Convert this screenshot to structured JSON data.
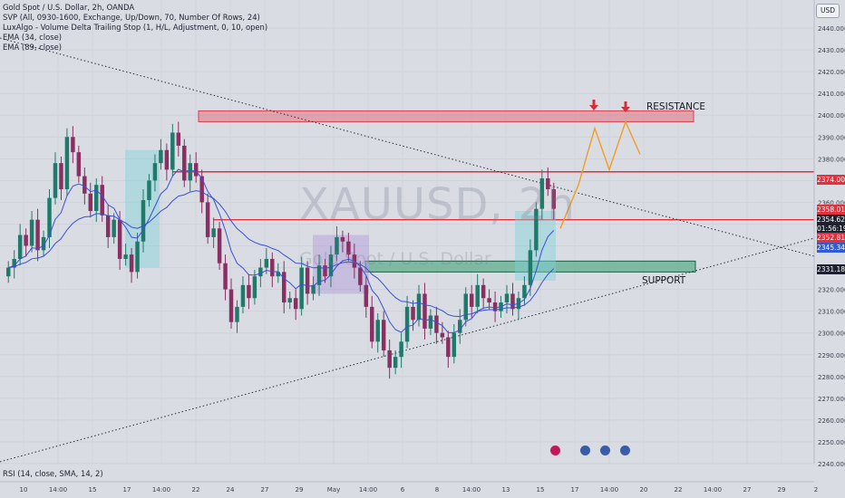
{
  "legend": {
    "line1": "Gold Spot / U.S. Dollar, 2h, OANDA",
    "line2": "SVP (All, 0930-1600, Exchange, Up/Down, 70, Number Of Rows, 24)",
    "line3": "LuxAlgo - Volume Delta Trailing Stop (1, H/L, Adjustment, 0, 10, open)",
    "line4": "EMA (34, close)",
    "line5": "EMA (89, close)"
  },
  "currency_button": "USD",
  "rsi_label": "RSI (14, close, SMA, 14, 2)",
  "watermark": {
    "symbol": "XAUUSD, 2h",
    "description": "Gold Spot / U.S. Dollar"
  },
  "annotations": {
    "resistance": "RESISTANCE",
    "support": "SUPPORT"
  },
  "price_labels": {
    "resistance_line": "2374.000",
    "level_red": "2358.012",
    "last_price": "2354.625",
    "countdown": "01:56:19",
    "level_red2": "2352.816",
    "ema_blue": "2345.348",
    "support_line": "2331.184"
  },
  "colors": {
    "background": "#d9dce3",
    "up_candle": "#1f7a6b",
    "down_candle": "#8a2f62",
    "ema": "#3b4fd6",
    "resistance_zone": "#e3737f",
    "support_zone": "#5fae8e",
    "projection": "#f39c1f",
    "red_line": "#e4303d",
    "arrow": "#d32f3b"
  },
  "chart_data": {
    "type": "candlestick",
    "symbol": "XAUUSD",
    "timeframe": "2h",
    "ylim": [
      2240,
      2450
    ],
    "y_ticks": [
      "2440.000",
      "2430.000",
      "2420.000",
      "2410.000",
      "2400.000",
      "2390.000",
      "2380.000",
      "2370.000",
      "2360.000",
      "2350.000",
      "2340.000",
      "2330.000",
      "2320.000",
      "2310.000",
      "2300.000",
      "2290.000",
      "2280.000",
      "2270.000",
      "2260.000",
      "2250.000",
      "2240.000"
    ],
    "x_ticks": [
      "10",
      "14:00",
      "15",
      "17",
      "14:00",
      "22",
      "24",
      "27",
      "29",
      "May",
      "14:00",
      "6",
      "8",
      "14:00",
      "13",
      "15",
      "17",
      "14:00",
      "20",
      "22",
      "14:00",
      "27",
      "29",
      "2"
    ],
    "resistance_zone": [
      2397,
      2402
    ],
    "support_zone": [
      2328,
      2333
    ],
    "horizontal_levels": [
      2374,
      2352
    ],
    "projection_path": [
      2348,
      2368,
      2394,
      2375,
      2397,
      2382
    ],
    "close_series": [
      2330,
      2334,
      2345,
      2340,
      2352,
      2338,
      2344,
      2362,
      2378,
      2366,
      2390,
      2383,
      2372,
      2364,
      2356,
      2368,
      2354,
      2344,
      2352,
      2334,
      2336,
      2328,
      2342,
      2361,
      2370,
      2378,
      2384,
      2375,
      2392,
      2386,
      2370,
      2378,
      2372,
      2360,
      2344,
      2348,
      2332,
      2320,
      2305,
      2312,
      2322,
      2316,
      2326,
      2330,
      2334,
      2326,
      2328,
      2314,
      2316,
      2311,
      2330,
      2318,
      2322,
      2331,
      2326,
      2336,
      2344,
      2342,
      2336,
      2330,
      2322,
      2312,
      2296,
      2306,
      2292,
      2284,
      2289,
      2296,
      2312,
      2306,
      2318,
      2302,
      2308,
      2300,
      2298,
      2289,
      2300,
      2306,
      2318,
      2312,
      2322,
      2316,
      2314,
      2310,
      2314,
      2318,
      2311,
      2316,
      2322,
      2338,
      2357,
      2371,
      2366,
      2357
    ]
  }
}
